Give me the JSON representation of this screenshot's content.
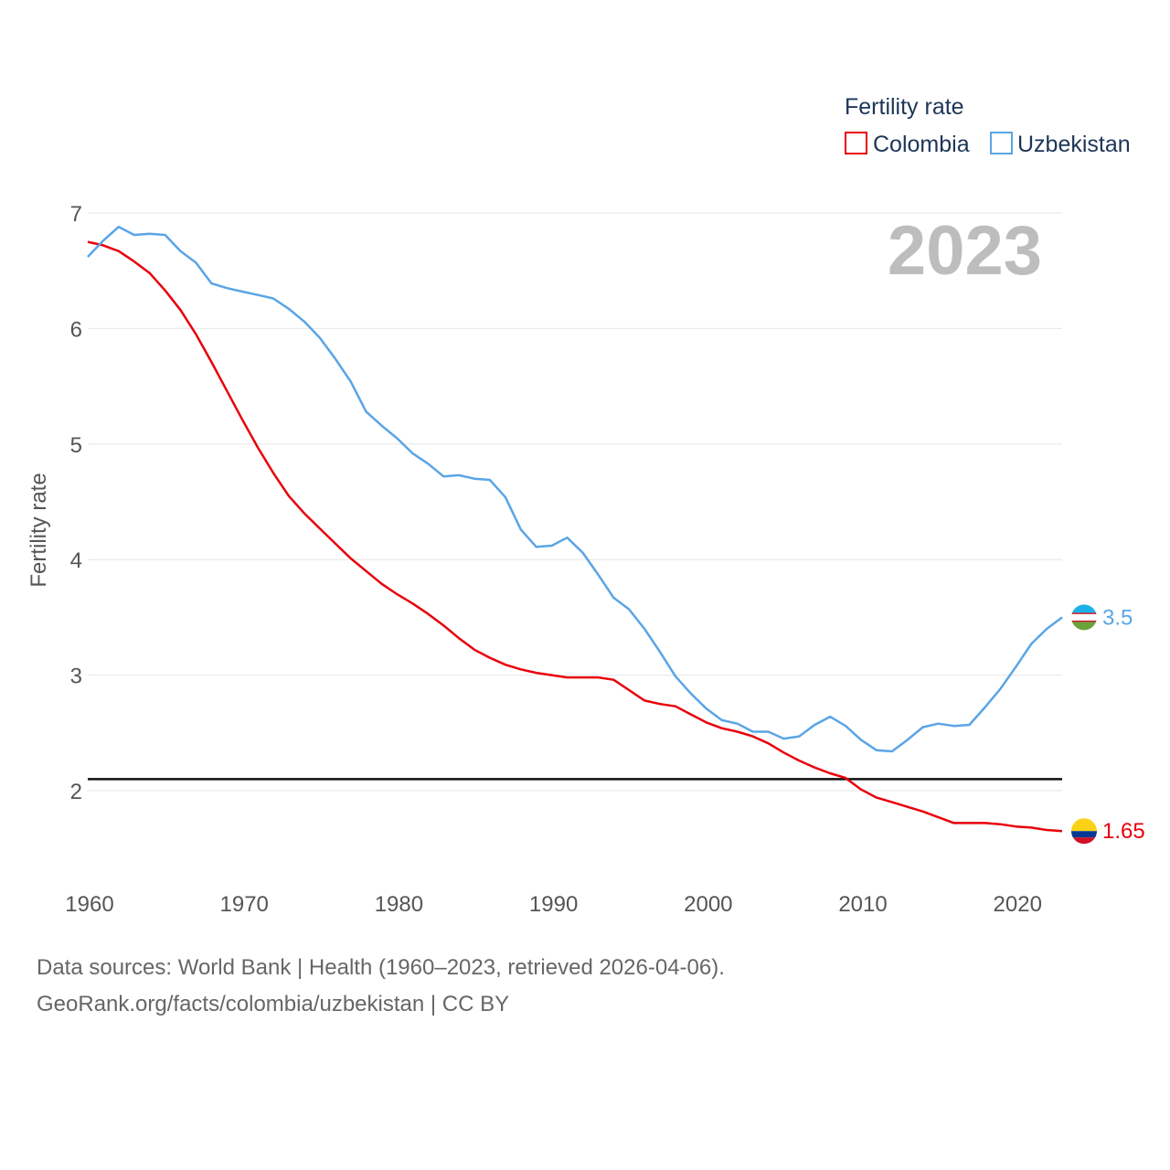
{
  "chart_data": {
    "type": "line",
    "legend_title": "Fertility rate",
    "ylabel": "Fertility rate",
    "current_year_label": "2023",
    "xlim": [
      1960,
      2023
    ],
    "ylim": [
      1.5,
      7
    ],
    "x_ticks": [
      1960,
      1970,
      1980,
      1990,
      2000,
      2010,
      2020
    ],
    "y_ticks": [
      2,
      3,
      4,
      5,
      6,
      7
    ],
    "reference_line": 2.1,
    "x": [
      1960,
      1961,
      1962,
      1963,
      1964,
      1965,
      1966,
      1967,
      1968,
      1969,
      1970,
      1971,
      1972,
      1973,
      1974,
      1975,
      1976,
      1977,
      1978,
      1979,
      1980,
      1981,
      1982,
      1983,
      1984,
      1985,
      1986,
      1987,
      1988,
      1989,
      1990,
      1991,
      1992,
      1993,
      1994,
      1995,
      1996,
      1997,
      1998,
      1999,
      2000,
      2001,
      2002,
      2003,
      2004,
      2005,
      2006,
      2007,
      2008,
      2009,
      2010,
      2011,
      2012,
      2013,
      2014,
      2015,
      2016,
      2017,
      2018,
      2019,
      2020,
      2021,
      2022,
      2023
    ],
    "series": [
      {
        "name": "Colombia",
        "color": "#e8000b",
        "end_label": "1.65",
        "values": [
          6.75,
          6.72,
          6.67,
          6.58,
          6.48,
          6.33,
          6.16,
          5.95,
          5.71,
          5.46,
          5.21,
          4.97,
          4.75,
          4.55,
          4.4,
          4.27,
          4.14,
          4.01,
          3.9,
          3.79,
          3.7,
          3.62,
          3.53,
          3.43,
          3.32,
          3.22,
          3.15,
          3.09,
          3.05,
          3.02,
          3.0,
          2.98,
          2.98,
          2.98,
          2.96,
          2.87,
          2.78,
          2.75,
          2.73,
          2.66,
          2.59,
          2.54,
          2.51,
          2.47,
          2.41,
          2.33,
          2.26,
          2.2,
          2.15,
          2.11,
          2.01,
          1.94,
          1.9,
          1.86,
          1.82,
          1.77,
          1.72,
          1.72,
          1.72,
          1.71,
          1.69,
          1.68,
          1.66,
          1.65
        ]
      },
      {
        "name": "Uzbekistan",
        "color": "#5aa5e6",
        "end_label": "3.5",
        "values": [
          6.62,
          6.76,
          6.88,
          6.81,
          6.82,
          6.81,
          6.67,
          6.57,
          6.39,
          6.35,
          6.32,
          6.29,
          6.26,
          6.17,
          6.06,
          5.92,
          5.74,
          5.54,
          5.28,
          5.16,
          5.05,
          4.92,
          4.83,
          4.72,
          4.73,
          4.7,
          4.69,
          4.54,
          4.26,
          4.11,
          4.12,
          4.19,
          4.06,
          3.87,
          3.67,
          3.57,
          3.4,
          3.2,
          2.99,
          2.84,
          2.71,
          2.61,
          2.58,
          2.51,
          2.51,
          2.45,
          2.47,
          2.57,
          2.64,
          2.56,
          2.44,
          2.35,
          2.34,
          2.44,
          2.55,
          2.58,
          2.56,
          2.57,
          2.72,
          2.88,
          3.07,
          3.27,
          3.4,
          3.5
        ]
      }
    ]
  },
  "footer": {
    "line1": "Data sources: World Bank | Health (1960–2023, retrieved 2026-04-06).",
    "line2": "GeoRank.org/facts/colombia/uzbekistan | CC BY"
  }
}
